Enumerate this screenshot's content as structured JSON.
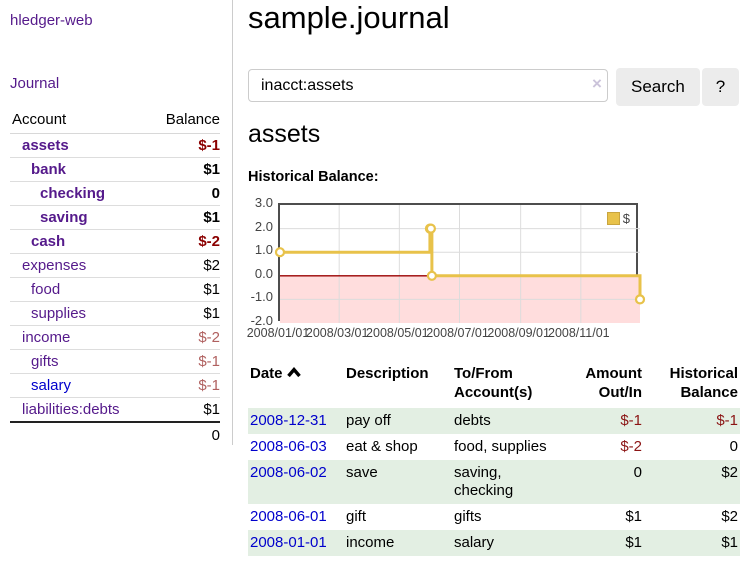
{
  "sidebar": {
    "brand": "hledger-web",
    "journal_link": "Journal",
    "accounts_table": {
      "headers": [
        "Account",
        "Balance"
      ],
      "rows": [
        {
          "name": "assets",
          "indent": 1,
          "bold": true,
          "balance": "$-1",
          "balance_class": "neg-strong"
        },
        {
          "name": "bank",
          "indent": 2,
          "bold": true,
          "balance": "$1",
          "balance_class": ""
        },
        {
          "name": "checking",
          "indent": 3,
          "bold": true,
          "balance": "0",
          "balance_class": ""
        },
        {
          "name": "saving",
          "indent": 3,
          "bold": true,
          "balance": "$1",
          "balance_class": ""
        },
        {
          "name": "cash",
          "indent": 2,
          "bold": true,
          "balance": "$-2",
          "balance_class": "neg-strong"
        },
        {
          "name": "expenses",
          "indent": 1,
          "bold": false,
          "balance": "$2",
          "balance_class": ""
        },
        {
          "name": "food",
          "indent": 2,
          "bold": false,
          "balance": "$1",
          "balance_class": ""
        },
        {
          "name": "supplies",
          "indent": 2,
          "bold": false,
          "balance": "$1",
          "balance_class": ""
        },
        {
          "name": "income",
          "indent": 1,
          "bold": false,
          "balance": "$-2",
          "balance_class": "neg-soft"
        },
        {
          "name": "gifts",
          "indent": 2,
          "bold": false,
          "balance": "$-1",
          "balance_class": "neg-soft"
        },
        {
          "name": "salary",
          "indent": 2,
          "bold": false,
          "balance": "$-1",
          "balance_class": "neg-soft",
          "link_class": "blue"
        },
        {
          "name": "liabilities:debts",
          "indent": 1,
          "bold": false,
          "balance": "$1",
          "balance_class": ""
        }
      ],
      "total": "0"
    }
  },
  "header": {
    "title": "sample.journal"
  },
  "search": {
    "value": "inacct:assets",
    "clear_icon": "×",
    "button_label": "Search",
    "help_label": "?"
  },
  "register": {
    "heading": "assets",
    "chart_label": "Historical Balance:",
    "table": {
      "headers": [
        {
          "label": "Date"
        },
        {
          "label": "Description"
        },
        {
          "label": "To/From Account(s)"
        },
        {
          "label": "Amount Out/In"
        },
        {
          "label": "Historical Balance"
        }
      ],
      "rows": [
        {
          "date": "2008-12-31",
          "description": "pay off",
          "accounts": "debts",
          "amount": "$-1",
          "amount_negative": true,
          "balance": "$-1",
          "balance_negative": true
        },
        {
          "date": "2008-06-03",
          "description": "eat & shop",
          "accounts": "food, supplies",
          "amount": "$-2",
          "amount_negative": true,
          "balance": "0",
          "balance_negative": false
        },
        {
          "date": "2008-06-02",
          "description": "save",
          "accounts": "saving, checking",
          "amount": "0",
          "amount_negative": false,
          "balance": "$2",
          "balance_negative": false
        },
        {
          "date": "2008-06-01",
          "description": "gift",
          "accounts": "gifts",
          "amount": "$1",
          "amount_negative": false,
          "balance": "$2",
          "balance_negative": false
        },
        {
          "date": "2008-01-01",
          "description": "income",
          "accounts": "salary",
          "amount": "$1",
          "amount_negative": false,
          "balance": "$1",
          "balance_negative": false
        }
      ]
    }
  },
  "chart_data": {
    "type": "line",
    "step": true,
    "title": "Historical Balance",
    "series": [
      {
        "name": "$",
        "color": "#e8c24a",
        "points": [
          [
            "2008-01-01",
            1
          ],
          [
            "2008-06-01",
            2
          ],
          [
            "2008-06-02",
            2
          ],
          [
            "2008-06-03",
            0
          ],
          [
            "2008-12-31",
            -1
          ]
        ]
      }
    ],
    "x_range": [
      "2008-01-01",
      "2008-12-31"
    ],
    "x_tick_labels": [
      "2008/01/01",
      "2008/03/01",
      "2008/05/01",
      "2008/07/01",
      "2008/09/01",
      "2008/11/01"
    ],
    "y_ticks": [
      3.0,
      2.0,
      1.0,
      0.0,
      -1.0,
      -2.0
    ],
    "ylim": [
      -2,
      3
    ],
    "grid": true,
    "legend_position": "top-right",
    "negative_fill": "#ffdddd",
    "zero_line_color": "#990000"
  },
  "colors": {
    "link_purple": "#551a8b",
    "link_blue": "#0000cc",
    "negative_strong": "#8b0000",
    "negative_soft": "#b0605f",
    "table_negative": "#8b1414",
    "row_green": "#e3efe3",
    "series_gold": "#e8c24a",
    "chart_negative_fill": "#ffdddd",
    "zero_line": "#990000"
  }
}
